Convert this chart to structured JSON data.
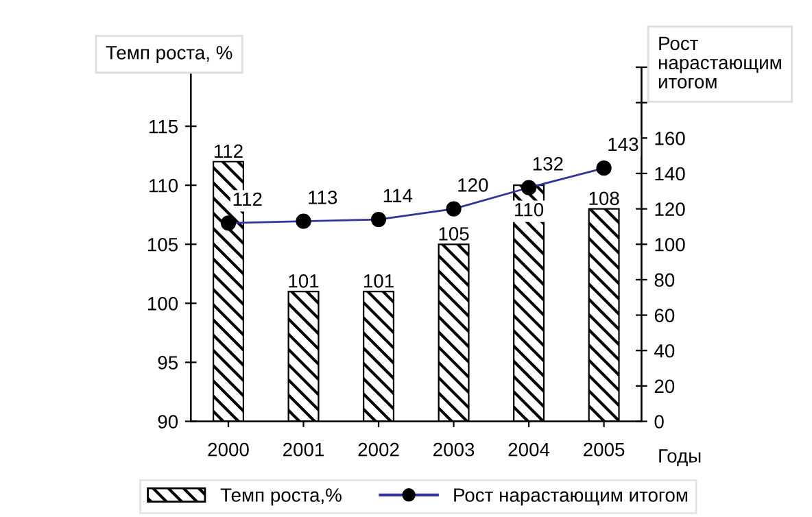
{
  "chart_data": {
    "type": "bar",
    "categories": [
      "2000",
      "2001",
      "2002",
      "2003",
      "2004",
      "2005"
    ],
    "ylabel": "Темп роста, %",
    "y2label": "Рост нарастающим итогом",
    "xlabel": "Годы",
    "series": [
      {
        "name": "Темп роста,%",
        "color": "#000000",
        "values": [
          112,
          101,
          101,
          105,
          110,
          108
        ]
      },
      {
        "name": "Рост нарастающим итогом",
        "type": "line",
        "axis": "y2",
        "color": "#333399",
        "marker": "circle",
        "values": [
          112,
          113,
          114,
          120,
          132,
          143
        ]
      }
    ],
    "ylim": [
      90,
      120
    ],
    "yticks": [
      90,
      95,
      100,
      105,
      110,
      115,
      {
        "value": 120,
        "label": null
      }
    ],
    "y2lim": [
      0,
      200
    ],
    "y2ticks": [
      0,
      20,
      40,
      60,
      80,
      100,
      120,
      140,
      160,
      {
        "value": 180,
        "label": null
      },
      {
        "value": 200,
        "label": null
      }
    ],
    "data_labels": true,
    "grid": false,
    "legend": "bottom"
  }
}
